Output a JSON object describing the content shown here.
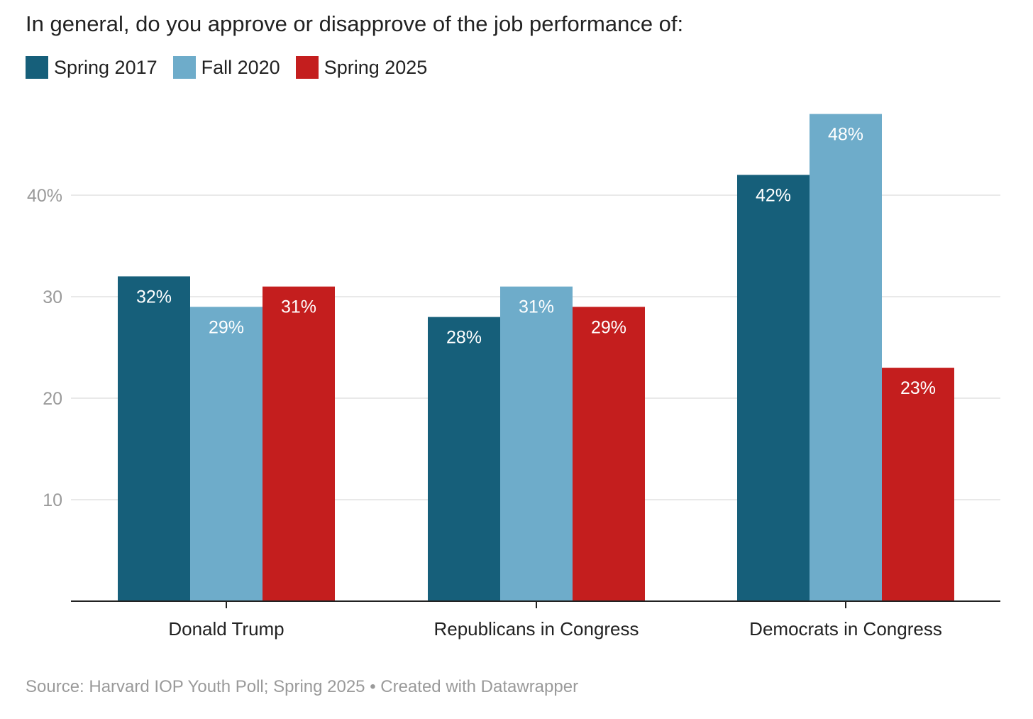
{
  "title": "In general, do you approve or disapprove of the job performance of:",
  "source": "Source: Harvard IOP Youth Poll; Spring 2025 • Created with Datawrapper",
  "chart_data": {
    "type": "bar",
    "title": "In general, do you approve or disapprove of the job performance of:",
    "categories": [
      "Donald Trump",
      "Republicans in Congress",
      "Democrats in Congress"
    ],
    "series": [
      {
        "name": "Spring 2017",
        "color": "#165f7a",
        "values": [
          32,
          28,
          42
        ],
        "labels": [
          "32%",
          "28%",
          "42%"
        ]
      },
      {
        "name": "Fall 2020",
        "color": "#6eacca",
        "values": [
          29,
          31,
          48
        ],
        "labels": [
          "29%",
          "31%",
          "48%"
        ]
      },
      {
        "name": "Spring 2025",
        "color": "#c41e1e",
        "values": [
          31,
          29,
          23
        ],
        "labels": [
          "31%",
          "29%",
          "23%"
        ]
      }
    ],
    "ylim": [
      0,
      48
    ],
    "yticks": [
      10,
      20,
      30,
      40
    ],
    "ytick_labels": [
      "10",
      "20",
      "30",
      "40%"
    ],
    "grid": true,
    "legend": "top-left",
    "xlabel": "",
    "ylabel": ""
  }
}
